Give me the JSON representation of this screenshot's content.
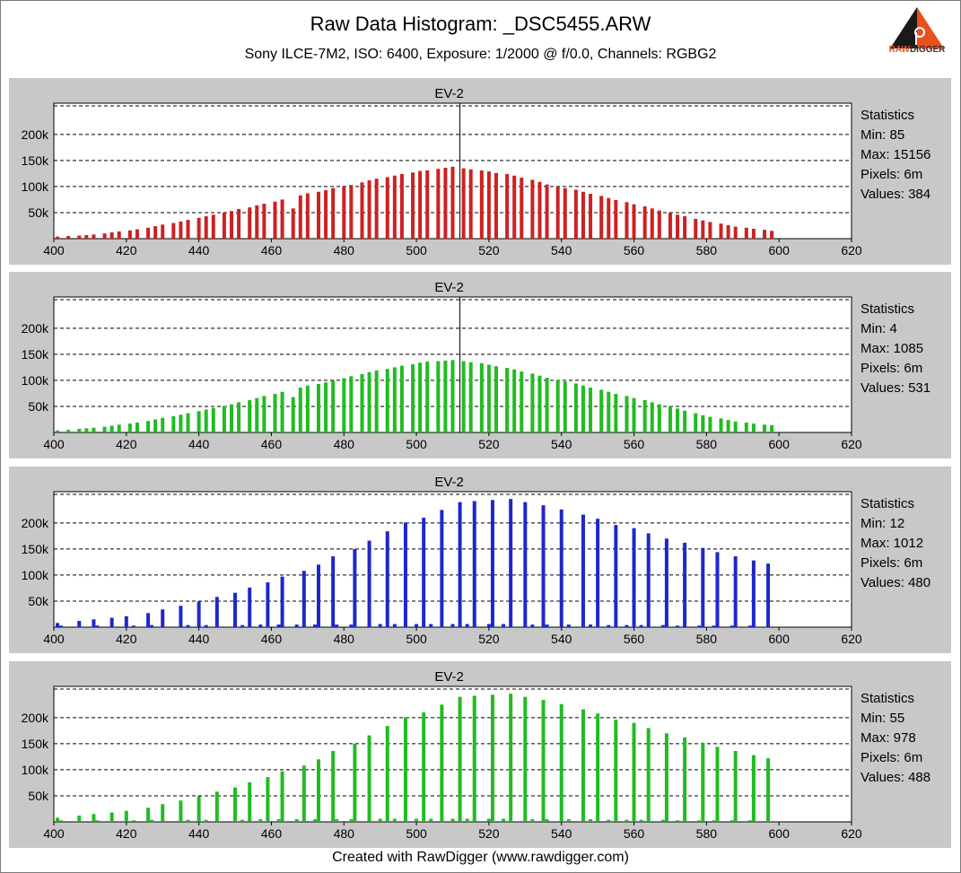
{
  "header": {
    "title": "Raw Data Histogram: _DSC5455.ARW",
    "subtitle": "Sony ILCE-7M2, ISO: 6400, Exposure: 1/2000 @ f/0.0, Channels: RGBG2",
    "logo_text_1": "RAW",
    "logo_text_2": "DIGGER"
  },
  "footer": {
    "text": "Created with RawDigger (www.rawdigger.com)"
  },
  "chart_data": [
    {
      "type": "bar",
      "channel": "R",
      "color": "#cc2222",
      "title": "EV-2",
      "xlim": [
        400,
        620
      ],
      "ylim": [
        0,
        260000
      ],
      "xticks": [
        400,
        420,
        440,
        460,
        480,
        500,
        520,
        540,
        560,
        580,
        600,
        620
      ],
      "yticks": [
        50000,
        100000,
        150000,
        200000
      ],
      "ytick_labels": [
        "50k",
        "100k",
        "150k",
        "200k"
      ],
      "marker_x": 512,
      "grid": true,
      "x": [
        401,
        404,
        407,
        409,
        411,
        414,
        416,
        418,
        421,
        423,
        426,
        428,
        430,
        433,
        435,
        437,
        440,
        442,
        444,
        447,
        449,
        451,
        454,
        456,
        458,
        461,
        463,
        466,
        468,
        470,
        473,
        475,
        477,
        480,
        482,
        485,
        487,
        489,
        492,
        494,
        496,
        499,
        501,
        503,
        506,
        508,
        510,
        513,
        515,
        518,
        520,
        522,
        525,
        527,
        529,
        532,
        534,
        536,
        539,
        541,
        544,
        546,
        548,
        551,
        553,
        555,
        558,
        560,
        563,
        565,
        567,
        570,
        572,
        574,
        577,
        579,
        581,
        584,
        586,
        588,
        591,
        593,
        596,
        598
      ],
      "values": [
        4000,
        5000,
        6000,
        7000,
        8000,
        10000,
        12000,
        14000,
        16000,
        18000,
        21000,
        24000,
        27000,
        30000,
        33000,
        36000,
        40000,
        43000,
        46000,
        50000,
        53000,
        57000,
        60000,
        64000,
        67000,
        71000,
        75000,
        58000,
        83000,
        87000,
        90000,
        93000,
        97000,
        100000,
        103000,
        108000,
        112000,
        115000,
        118000,
        121000,
        124000,
        127000,
        130000,
        131000,
        134000,
        136000,
        138000,
        135000,
        133000,
        131000,
        129000,
        126000,
        124000,
        121000,
        117000,
        113000,
        109000,
        104000,
        100000,
        97000,
        94000,
        90000,
        86000,
        82000,
        78000,
        74000,
        70000,
        66000,
        62000,
        58000,
        54000,
        50000,
        46000,
        43000,
        38000,
        35000,
        32000,
        29000,
        26000,
        23000,
        21000,
        19000,
        17000,
        15000
      ],
      "statistics": {
        "heading": "Statistics",
        "min": "Min: 85",
        "max": "Max: 15156",
        "pixels": "Pixels: 6m",
        "values": "Values: 384"
      }
    },
    {
      "type": "bar",
      "channel": "G",
      "color": "#22bb22",
      "title": "EV-2",
      "xlim": [
        400,
        620
      ],
      "ylim": [
        0,
        260000
      ],
      "xticks": [
        400,
        420,
        440,
        460,
        480,
        500,
        520,
        540,
        560,
        580,
        600,
        620
      ],
      "yticks": [
        50000,
        100000,
        150000,
        200000
      ],
      "ytick_labels": [
        "50k",
        "100k",
        "150k",
        "200k"
      ],
      "marker_x": 512,
      "grid": true,
      "x": [
        401,
        404,
        407,
        409,
        411,
        414,
        416,
        418,
        421,
        423,
        426,
        428,
        430,
        433,
        435,
        437,
        440,
        442,
        444,
        447,
        449,
        451,
        454,
        456,
        458,
        461,
        463,
        466,
        468,
        470,
        473,
        475,
        477,
        480,
        482,
        485,
        487,
        489,
        492,
        494,
        496,
        499,
        501,
        503,
        506,
        508,
        510,
        513,
        515,
        518,
        520,
        522,
        525,
        527,
        529,
        532,
        534,
        536,
        539,
        541,
        544,
        546,
        548,
        551,
        553,
        555,
        558,
        560,
        563,
        565,
        567,
        570,
        572,
        574,
        577,
        579,
        581,
        584,
        586,
        588,
        591,
        593,
        596,
        598
      ],
      "values": [
        4000,
        5000,
        7000,
        8000,
        9000,
        11000,
        13000,
        15000,
        17000,
        19000,
        22000,
        25000,
        28000,
        31000,
        34000,
        37000,
        41000,
        44000,
        47000,
        51000,
        54000,
        58000,
        62000,
        66000,
        70000,
        74000,
        78000,
        68000,
        86000,
        90000,
        93000,
        96000,
        99000,
        104000,
        108000,
        112000,
        116000,
        119000,
        122000,
        125000,
        128000,
        131000,
        134000,
        136000,
        137000,
        138000,
        139000,
        137000,
        135000,
        133000,
        130000,
        127000,
        124000,
        121000,
        117000,
        113000,
        109000,
        105000,
        101000,
        98000,
        94000,
        90000,
        86000,
        82000,
        78000,
        74000,
        70000,
        66000,
        62000,
        58000,
        54000,
        50000,
        46000,
        42000,
        37000,
        33000,
        30000,
        27000,
        24000,
        21000,
        19000,
        17000,
        15000,
        14000
      ],
      "statistics": {
        "heading": "Statistics",
        "min": "Min: 4",
        "max": "Max: 1085",
        "pixels": "Pixels: 6m",
        "values": "Values: 531"
      }
    },
    {
      "type": "bar",
      "channel": "B",
      "color": "#1e28c8",
      "title": "EV-2",
      "xlim": [
        400,
        620
      ],
      "ylim": [
        0,
        260000
      ],
      "xticks": [
        400,
        420,
        440,
        460,
        480,
        500,
        520,
        540,
        560,
        580,
        600,
        620
      ],
      "yticks": [
        50000,
        100000,
        150000,
        200000
      ],
      "ytick_labels": [
        "50k",
        "100k",
        "150k",
        "200k"
      ],
      "grid": true,
      "x": [
        401,
        407,
        411,
        416,
        420,
        426,
        430,
        435,
        440,
        445,
        450,
        454,
        459,
        463,
        469,
        473,
        477,
        483,
        487,
        492,
        497,
        502,
        507,
        512,
        516,
        521,
        526,
        530,
        535,
        540,
        546,
        550,
        555,
        560,
        564,
        569,
        574,
        579,
        583,
        588,
        593,
        597,
        402,
        412,
        422,
        427,
        437,
        442,
        452,
        457,
        462,
        467,
        472,
        478,
        482,
        490,
        494,
        500,
        504,
        510,
        514,
        520,
        524,
        532,
        536,
        542,
        548,
        553,
        558,
        562,
        568,
        572,
        578,
        582,
        587,
        592
      ],
      "values": [
        8000,
        12000,
        15000,
        18000,
        21000,
        27000,
        34000,
        41000,
        49000,
        58000,
        66000,
        76000,
        86000,
        97000,
        108000,
        120000,
        136000,
        150000,
        166000,
        184000,
        201000,
        210000,
        225000,
        240000,
        242000,
        244000,
        246000,
        240000,
        234000,
        226000,
        216000,
        208000,
        196000,
        190000,
        180000,
        170000,
        162000,
        152000,
        144000,
        136000,
        128000,
        122000,
        3000,
        3000,
        3000,
        4000,
        4000,
        4000,
        4000,
        5000,
        5000,
        5000,
        5000,
        5000,
        5000,
        6000,
        6000,
        6000,
        6000,
        6000,
        6000,
        6000,
        6000,
        5000,
        5000,
        5000,
        5000,
        4000,
        4000,
        4000,
        4000,
        3000,
        3000,
        3000,
        3000,
        3000
      ],
      "values_note_hidden": "",
      "statistics": {
        "heading": "Statistics",
        "min": "Min: 12",
        "max": "Max: 1012",
        "pixels": "Pixels: 6m",
        "values": "Values: 480"
      }
    },
    {
      "type": "bar",
      "channel": "G2",
      "color": "#22bb22",
      "title": "EV-2",
      "xlim": [
        400,
        620
      ],
      "ylim": [
        0,
        260000
      ],
      "xticks": [
        400,
        420,
        440,
        460,
        480,
        500,
        520,
        540,
        560,
        580,
        600,
        620
      ],
      "yticks": [
        50000,
        100000,
        150000,
        200000
      ],
      "ytick_labels": [
        "50k",
        "100k",
        "150k",
        "200k"
      ],
      "grid": true,
      "x": [
        401,
        407,
        411,
        416,
        420,
        426,
        430,
        435,
        440,
        445,
        450,
        454,
        459,
        463,
        469,
        473,
        477,
        483,
        487,
        492,
        497,
        502,
        507,
        512,
        516,
        521,
        526,
        530,
        535,
        540,
        546,
        550,
        555,
        560,
        564,
        569,
        574,
        579,
        583,
        588,
        593,
        597,
        402,
        412,
        422,
        427,
        437,
        442,
        452,
        457,
        462,
        467,
        472,
        478,
        482,
        490,
        494,
        500,
        504,
        510,
        514,
        520,
        524,
        532,
        536,
        542,
        548,
        553,
        558,
        562,
        568,
        572,
        578,
        582,
        587,
        592
      ],
      "values": [
        8000,
        12000,
        15000,
        18000,
        21000,
        27000,
        34000,
        41000,
        49000,
        58000,
        66000,
        76000,
        86000,
        97000,
        108000,
        120000,
        136000,
        150000,
        166000,
        184000,
        201000,
        210000,
        225000,
        240000,
        242000,
        244000,
        246000,
        240000,
        234000,
        226000,
        216000,
        208000,
        196000,
        190000,
        180000,
        170000,
        162000,
        152000,
        144000,
        136000,
        128000,
        122000,
        3000,
        3000,
        3000,
        4000,
        4000,
        4000,
        4000,
        5000,
        5000,
        5000,
        5000,
        5000,
        5000,
        6000,
        6000,
        6000,
        6000,
        6000,
        6000,
        6000,
        6000,
        5000,
        5000,
        5000,
        5000,
        4000,
        4000,
        4000,
        4000,
        3000,
        3000,
        3000,
        3000,
        3000
      ],
      "statistics": {
        "heading": "Statistics",
        "min": "Min: 55",
        "max": "Max: 978",
        "pixels": "Pixels: 6m",
        "values": "Values: 488"
      }
    }
  ]
}
